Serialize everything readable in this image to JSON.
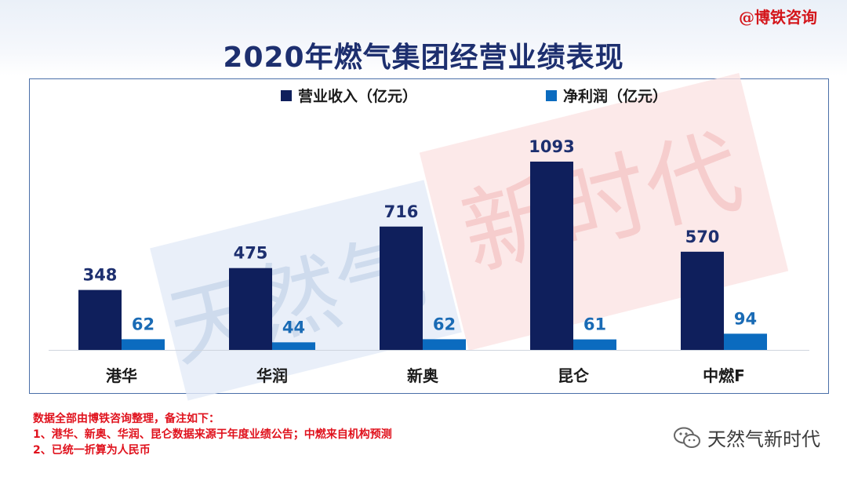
{
  "credit": "@博铁咨询",
  "notes": [
    "数据全部由博铁咨询整理，备注如下：",
    "1、港华、新奥、华润、昆仑数据来源于年度业绩公告；中燃来自机构预测",
    "2、已统一折算为人民币"
  ],
  "brand": {
    "name": "天然气新时代",
    "icon": "wechat-icon"
  },
  "watermark": {
    "left_text": "天然气",
    "right_text": "新时代",
    "colors": {
      "left": "#c6d5ea",
      "right": "#f5c9c9"
    }
  },
  "chart_data": {
    "type": "bar",
    "title": "2020年燃气集团经营业绩表现",
    "categories": [
      "港华",
      "华润",
      "新奥",
      "昆仑",
      "中燃F"
    ],
    "series": [
      {
        "name": "营业收入（亿元）",
        "values": [
          348,
          475,
          716,
          1093,
          570
        ],
        "color": "#0f1f5c"
      },
      {
        "name": "净利润（亿元）",
        "values": [
          62,
          44,
          62,
          61,
          94
        ],
        "color": "#0b6bbf"
      }
    ],
    "ylim": [
      0,
      1200
    ],
    "grid": false,
    "legend": "top-center"
  }
}
